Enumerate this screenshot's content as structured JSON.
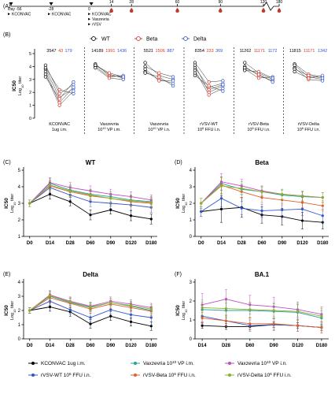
{
  "timeline": {
    "panel_label": "(A)",
    "label_groups": [
      {
        "x": -56,
        "lines": [
          "Day -56",
          "KCONVAC"
        ]
      },
      {
        "x": -28,
        "lines": [
          "-28",
          "KCONVAC"
        ]
      },
      {
        "x": 0,
        "lines": [
          "0",
          "KCONVAC",
          "Vaxzevria",
          "rVSV"
        ]
      }
    ],
    "sample_days": [
      "14",
      "28",
      "60",
      "90",
      "120",
      "180"
    ],
    "sample_positions": [
      14,
      28,
      60,
      90,
      120,
      180
    ]
  },
  "panel_b": {
    "panel_label": "(B)",
    "legend": [
      "WT",
      "Beta",
      "Delta"
    ],
    "ylabel": "IC50",
    "ylabel2": "Log10 titer",
    "yticks": [
      "0",
      "1",
      "2",
      "3",
      "4",
      "5"
    ],
    "groups": [
      {
        "label_lines": [
          "KCONVAC",
          "1ug i.m."
        ],
        "gmt": [
          "3547",
          "43",
          "179"
        ],
        "wt": [
          3.8,
          4.1,
          3.9,
          3.6,
          3.4,
          3.2
        ],
        "beta": [
          1.6,
          1.9,
          2.2,
          1.2,
          1.0,
          1.5
        ],
        "delta": [
          2.3,
          2.6,
          1.9,
          2.4,
          2.1,
          2.8
        ]
      },
      {
        "label_lines": [
          "Vaxzevria",
          "10^10 VP i.m."
        ],
        "gmt": [
          "14189",
          "1991",
          "1436"
        ],
        "wt": [
          4.2,
          4.1,
          4.0,
          3.9,
          4.1
        ],
        "beta": [
          3.3,
          3.4,
          3.2,
          3.1,
          3.5
        ],
        "delta": [
          3.2,
          3.1,
          3.3,
          3.0,
          3.2
        ]
      },
      {
        "label_lines": [
          "Vaxzevria",
          "10^10 VP i.n."
        ],
        "gmt": [
          "5521",
          "1506",
          "887"
        ],
        "wt": [
          4.3,
          4.0,
          3.6,
          3.5,
          3.8
        ],
        "beta": [
          3.3,
          3.5,
          3.0,
          3.2,
          2.9
        ],
        "delta": [
          3.0,
          3.2,
          2.7,
          2.5,
          2.9
        ]
      },
      {
        "label_lines": [
          "rVSV-WT",
          "10^6 FFU i.n."
        ],
        "gmt": [
          "8354",
          "233",
          "369"
        ],
        "wt": [
          4.3,
          4.1,
          3.9,
          3.7,
          3.5,
          3.3
        ],
        "beta": [
          2.8,
          2.0,
          2.4,
          1.8,
          2.2,
          2.5
        ],
        "delta": [
          2.9,
          2.5,
          2.7,
          2.3,
          2.6,
          2.1
        ]
      },
      {
        "label_lines": [
          "rVSV-Beta",
          "10^6 FFU i.n."
        ],
        "gmt": [
          "11262",
          "11171",
          "1172"
        ],
        "wt": [
          4.3,
          4.0,
          3.8,
          3.7,
          3.9
        ],
        "beta": [
          3.5,
          3.3,
          3.1,
          3.6,
          3.4
        ],
        "delta": [
          3.0,
          2.9,
          3.2,
          3.1,
          2.8
        ]
      },
      {
        "label_lines": [
          "rVSV-Delta",
          "10^6 FFU i.n."
        ],
        "gmt": [
          "11815",
          "11171",
          "1342"
        ],
        "wt": [
          4.2,
          4.1,
          3.9,
          3.8,
          3.6
        ],
        "beta": [
          3.4,
          3.2,
          3.0,
          3.3,
          3.1
        ],
        "delta": [
          3.2,
          3.0,
          2.9,
          3.1,
          3.3
        ]
      }
    ]
  },
  "legend": {
    "entries": [
      {
        "label": "KCONVAC 1ug i.m.",
        "color": "#000000"
      },
      {
        "label": "Vaxzevria 10^10 VP i.m.",
        "color": "#2aa198"
      },
      {
        "label": "Vaxzevria 10^10 VP i.n.",
        "color": "#c04cc8"
      },
      {
        "label": "rVSV-WT 10^6 FFU i.n.",
        "color": "#3355cc"
      },
      {
        "label": "rVSV-Beta 10^6 FFU i.n.",
        "color": "#e0602a"
      },
      {
        "label": "rVSV-Delta 10^6 FFU i.n.",
        "color": "#88b030"
      }
    ]
  },
  "chart_data": [
    {
      "type": "line",
      "panel_label": "(C)",
      "title": "WT",
      "ylabel": "IC50",
      "ylabel2": "Log10 titer",
      "categories": [
        "D0",
        "D14",
        "D28",
        "D60",
        "D90",
        "D120",
        "D180"
      ],
      "ylim": [
        1,
        5
      ],
      "yticks": [
        "1",
        "2",
        "3",
        "4",
        "5"
      ],
      "series": [
        {
          "values": [
            3.0,
            3.55,
            3.1,
            2.3,
            2.6,
            2.25,
            2.05
          ],
          "err": [
            0.2,
            0.3,
            0.25,
            0.3,
            0.25,
            0.3,
            0.3
          ]
        },
        {
          "values": [
            3.0,
            4.2,
            3.8,
            3.55,
            3.4,
            3.2,
            3.1
          ],
          "err": [
            0.2,
            0.3,
            0.3,
            0.3,
            0.3,
            0.3,
            0.3
          ]
        },
        {
          "values": [
            3.0,
            4.25,
            3.95,
            3.75,
            3.55,
            3.4,
            3.2
          ],
          "err": [
            0.2,
            0.3,
            0.3,
            0.3,
            0.3,
            0.3,
            0.3
          ]
        },
        {
          "values": [
            3.0,
            3.95,
            3.5,
            3.1,
            3.0,
            2.9,
            2.75
          ],
          "err": [
            0.2,
            0.3,
            0.3,
            0.3,
            0.3,
            0.3,
            0.3
          ]
        },
        {
          "values": [
            3.0,
            4.05,
            3.7,
            3.45,
            3.3,
            3.1,
            3.0
          ],
          "err": [
            0.2,
            0.3,
            0.3,
            0.3,
            0.3,
            0.3,
            0.3
          ]
        },
        {
          "values": [
            3.0,
            4.1,
            3.75,
            3.5,
            3.3,
            3.15,
            3.05
          ],
          "err": [
            0.2,
            0.3,
            0.3,
            0.3,
            0.3,
            0.3,
            0.3
          ]
        }
      ]
    },
    {
      "type": "line",
      "panel_label": "(D)",
      "title": "Beta",
      "ylabel": "IC50",
      "ylabel2": "Log10 titer",
      "categories": [
        "D0",
        "D14",
        "D28",
        "D60",
        "D90",
        "D120",
        "D180"
      ],
      "ylim": [
        0,
        4
      ],
      "yticks": [
        "0",
        "1",
        "2",
        "3",
        "4"
      ],
      "series": [
        {
          "values": [
            1.5,
            1.65,
            1.75,
            1.3,
            1.2,
            0.95,
            0.85
          ],
          "err": [
            0.3,
            0.8,
            0.6,
            0.5,
            0.5,
            0.5,
            0.4
          ]
        },
        {
          "values": [
            2.0,
            3.2,
            2.85,
            2.7,
            2.5,
            2.4,
            2.35
          ],
          "err": [
            0.3,
            0.4,
            0.3,
            0.3,
            0.3,
            0.3,
            0.3
          ]
        },
        {
          "values": [
            2.0,
            3.3,
            3.05,
            2.75,
            2.55,
            2.45,
            2.35
          ],
          "err": [
            0.3,
            0.5,
            0.4,
            0.3,
            0.3,
            0.3,
            0.3
          ]
        },
        {
          "values": [
            1.5,
            2.3,
            1.7,
            1.55,
            1.6,
            1.65,
            1.25
          ],
          "err": [
            0.3,
            0.5,
            0.4,
            0.4,
            0.4,
            0.4,
            0.4
          ]
        },
        {
          "values": [
            2.0,
            3.1,
            2.7,
            2.35,
            2.2,
            2.05,
            1.85
          ],
          "err": [
            0.3,
            0.5,
            0.4,
            0.3,
            0.3,
            0.3,
            0.3
          ]
        },
        {
          "values": [
            2.0,
            3.05,
            2.9,
            2.7,
            2.55,
            2.45,
            2.35
          ],
          "err": [
            0.3,
            0.5,
            0.4,
            0.3,
            0.3,
            0.3,
            0.3
          ]
        }
      ]
    },
    {
      "type": "line",
      "panel_label": "(E)",
      "title": "Delta",
      "ylabel": "IC50",
      "ylabel2": "Log10 titer",
      "categories": [
        "D0",
        "D14",
        "D28",
        "D60",
        "D90",
        "D120",
        "D180"
      ],
      "ylim": [
        0,
        4
      ],
      "yticks": [
        "0",
        "1",
        "2",
        "3",
        "4"
      ],
      "series": [
        {
          "values": [
            2.0,
            2.25,
            1.9,
            1.05,
            1.6,
            1.2,
            0.9
          ],
          "err": [
            0.2,
            0.3,
            0.3,
            0.3,
            0.3,
            0.3,
            0.3
          ]
        },
        {
          "values": [
            2.0,
            3.0,
            2.55,
            2.2,
            2.55,
            2.3,
            2.0
          ],
          "err": [
            0.2,
            0.3,
            0.3,
            0.3,
            0.3,
            0.3,
            0.3
          ]
        },
        {
          "values": [
            2.0,
            3.1,
            2.65,
            2.3,
            2.65,
            2.45,
            2.2
          ],
          "err": [
            0.2,
            0.3,
            0.3,
            0.3,
            0.3,
            0.3,
            0.3
          ]
        },
        {
          "values": [
            2.0,
            2.65,
            2.05,
            1.5,
            2.05,
            1.7,
            1.5
          ],
          "err": [
            0.2,
            0.3,
            0.3,
            0.3,
            0.3,
            0.3,
            0.3
          ]
        },
        {
          "values": [
            2.0,
            2.9,
            2.5,
            2.1,
            2.45,
            2.2,
            1.95
          ],
          "err": [
            0.2,
            0.3,
            0.3,
            0.3,
            0.3,
            0.3,
            0.3
          ]
        },
        {
          "values": [
            2.0,
            3.05,
            2.6,
            2.25,
            2.55,
            2.35,
            2.1
          ],
          "err": [
            0.2,
            0.3,
            0.3,
            0.3,
            0.3,
            0.3,
            0.3
          ]
        }
      ]
    },
    {
      "type": "line",
      "panel_label": "(F)",
      "title": "BA.1",
      "ylabel": "IC50",
      "ylabel2": "Log10 titer",
      "categories": [
        "D14",
        "D28",
        "D60",
        "D90",
        "D120",
        "D180"
      ],
      "ylim": [
        0,
        3
      ],
      "yticks": [
        "0",
        "1",
        "2",
        "3"
      ],
      "series": [
        {
          "values": [
            0.7,
            0.65,
            0.65,
            0.75,
            0.7,
            0.6
          ],
          "err": [
            0.15,
            0.15,
            0.15,
            0.15,
            0.15,
            0.15
          ]
        },
        {
          "values": [
            1.55,
            1.5,
            1.5,
            1.45,
            1.4,
            1.1
          ],
          "err": [
            0.4,
            0.4,
            0.4,
            0.4,
            0.4,
            0.4
          ]
        },
        {
          "values": [
            1.8,
            2.1,
            1.8,
            1.7,
            1.55,
            1.3
          ],
          "err": [
            0.6,
            0.5,
            0.5,
            0.5,
            0.4,
            0.4
          ]
        },
        {
          "values": [
            1.2,
            0.95,
            0.7,
            0.75,
            0.7,
            0.6
          ],
          "err": [
            0.3,
            0.3,
            0.3,
            0.3,
            0.3,
            0.3
          ]
        },
        {
          "values": [
            1.1,
            0.95,
            0.8,
            0.8,
            0.7,
            0.6
          ],
          "err": [
            0.3,
            0.3,
            0.3,
            0.3,
            0.3,
            0.3
          ]
        },
        {
          "values": [
            1.65,
            1.6,
            1.55,
            1.5,
            1.45,
            1.2
          ],
          "err": [
            0.4,
            0.4,
            0.4,
            0.4,
            0.4,
            0.4
          ]
        }
      ]
    }
  ]
}
